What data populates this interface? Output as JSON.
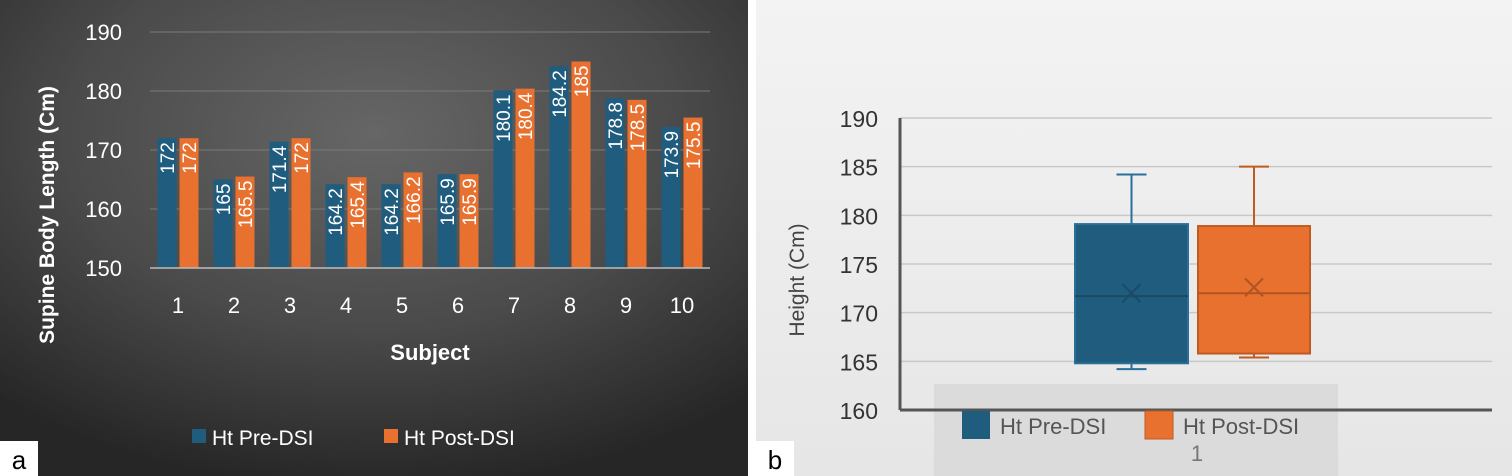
{
  "colors": {
    "pre": "#1F5C7E",
    "post": "#E8712F",
    "panelA_bg_outer": "#2a2a2a",
    "panelA_bg_inner": "#5a5a5a",
    "panelB_bg": "#ededed"
  },
  "panels": {
    "a": {
      "label": "a"
    },
    "b": {
      "label": "b"
    }
  },
  "chart_data": [
    {
      "type": "bar",
      "title": "",
      "xlabel": "Subject",
      "ylabel": "Supine Body Length (Cm)",
      "ylim": [
        150,
        190
      ],
      "yticks": [
        "150",
        "160",
        "170",
        "180",
        "190"
      ],
      "categories": [
        "1",
        "2",
        "3",
        "4",
        "5",
        "6",
        "7",
        "8",
        "9",
        "10"
      ],
      "series": [
        {
          "name": "Ht Pre-DSI",
          "values": [
            172,
            165,
            171.4,
            164.2,
            164.2,
            165.9,
            180.1,
            184.2,
            178.8,
            173.9
          ],
          "labels": [
            "172",
            "165",
            "171.4",
            "164.2",
            "164.2",
            "165.9",
            "180.1",
            "184.2",
            "178.8",
            "173.9"
          ]
        },
        {
          "name": "Ht Post-DSI",
          "values": [
            172,
            165.5,
            172,
            165.4,
            166.2,
            165.9,
            180.4,
            185,
            178.5,
            175.5
          ],
          "labels": [
            "172",
            "165.5",
            "172",
            "165.4",
            "166.2",
            "165.9",
            "180.4",
            "185",
            "178.5",
            "175.5"
          ]
        }
      ],
      "grid": true,
      "legend": "bottom"
    },
    {
      "type": "box",
      "title": "",
      "xlabel": "1",
      "ylabel": "Height (Cm)",
      "ylim": [
        160,
        190
      ],
      "yticks": [
        "160",
        "165",
        "170",
        "175",
        "180",
        "185",
        "190"
      ],
      "series": [
        {
          "name": "Ht Pre-DSI",
          "min": 164.2,
          "q1": 164.8,
          "median": 171.7,
          "mean": 172,
          "q3": 179.1,
          "max": 184.2
        },
        {
          "name": "Ht Post-DSI",
          "min": 165.4,
          "q1": 165.8,
          "median": 172,
          "mean": 172.6,
          "q3": 178.9,
          "max": 185
        }
      ],
      "grid": true,
      "legend": "bottom"
    }
  ]
}
